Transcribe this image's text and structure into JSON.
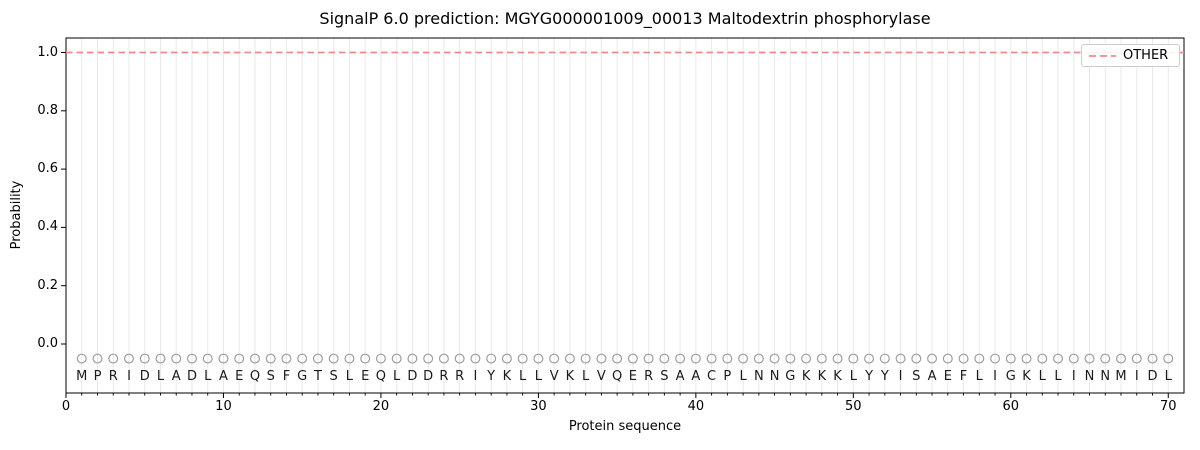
{
  "figure": {
    "title": "SignalP 6.0 prediction: MGYG000001009_00013 Maltodextrin phosphorylase"
  },
  "chart_data": {
    "type": "line",
    "title": "SignalP 6.0 prediction: MGYG000001009_00013 Maltodextrin phosphorylase",
    "xlabel": "Protein sequence",
    "ylabel": "Probability",
    "xlim": [
      0,
      71
    ],
    "ylim": [
      -0.17,
      1.05
    ],
    "x_ticks": [
      "0",
      "10",
      "20",
      "30",
      "40",
      "50",
      "60",
      "70"
    ],
    "y_ticks": [
      "0.0",
      "0.2",
      "0.4",
      "0.6",
      "0.8",
      "1.0"
    ],
    "grid": {
      "vertical_per_residue": true,
      "horizontal": false
    },
    "legend": {
      "position": "upper right",
      "entries": [
        {
          "label": "OTHER",
          "color": "#ee8a8a",
          "linestyle": "dashed"
        }
      ]
    },
    "sequence": "MPRIDLADLAEQSFGTSLEQLDDRRIYKLLVKLVQERSAACPLNNGKKKLYYISAEFLIGKLLINNMIDL",
    "series": [
      {
        "name": "OTHER",
        "linestyle": "dashed",
        "color": "#ee8a8a",
        "x_start": 0,
        "x_end": 71,
        "y_constant": 1.0
      }
    ],
    "residue_markers": {
      "shape": "open-circle",
      "color": "#9e9e9e",
      "y": -0.05
    },
    "colors": {
      "spine": "#000000",
      "grid": "#e9e9e9",
      "text": "#1a1a1a",
      "legend_border": "#cccccc",
      "background": "#ffffff"
    }
  }
}
